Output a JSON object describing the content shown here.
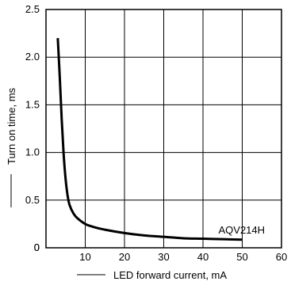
{
  "chart_data": {
    "type": "line",
    "title": "",
    "xlabel": "LED forward current, mA",
    "ylabel": "Turn on time, ms",
    "xlim": [
      0,
      60
    ],
    "ylim": [
      0,
      2.5
    ],
    "x_ticks": [
      0,
      10,
      20,
      30,
      40,
      50,
      60
    ],
    "y_ticks": [
      0,
      0.5,
      1.0,
      1.5,
      2.0,
      2.5
    ],
    "x_tick_labels": [
      "",
      "10",
      "20",
      "30",
      "40",
      "50",
      "60"
    ],
    "y_tick_labels": [
      "0",
      "0.5",
      "1.0",
      "1.5",
      "2.0",
      "2.5"
    ],
    "origin_label": "0",
    "grid": true,
    "series": [
      {
        "name": "AQV214H",
        "x": [
          3,
          3.5,
          4,
          4.5,
          5,
          5.5,
          6,
          7,
          8,
          10,
          12,
          15,
          20,
          25,
          30,
          35,
          40,
          45,
          50
        ],
        "y": [
          2.2,
          1.8,
          1.35,
          0.98,
          0.72,
          0.55,
          0.45,
          0.36,
          0.31,
          0.25,
          0.22,
          0.19,
          0.155,
          0.13,
          0.115,
          0.1,
          0.095,
          0.09,
          0.085
        ]
      }
    ],
    "annotations": [
      {
        "text": "AQV214H",
        "x": 50,
        "y": 0.085
      }
    ]
  }
}
